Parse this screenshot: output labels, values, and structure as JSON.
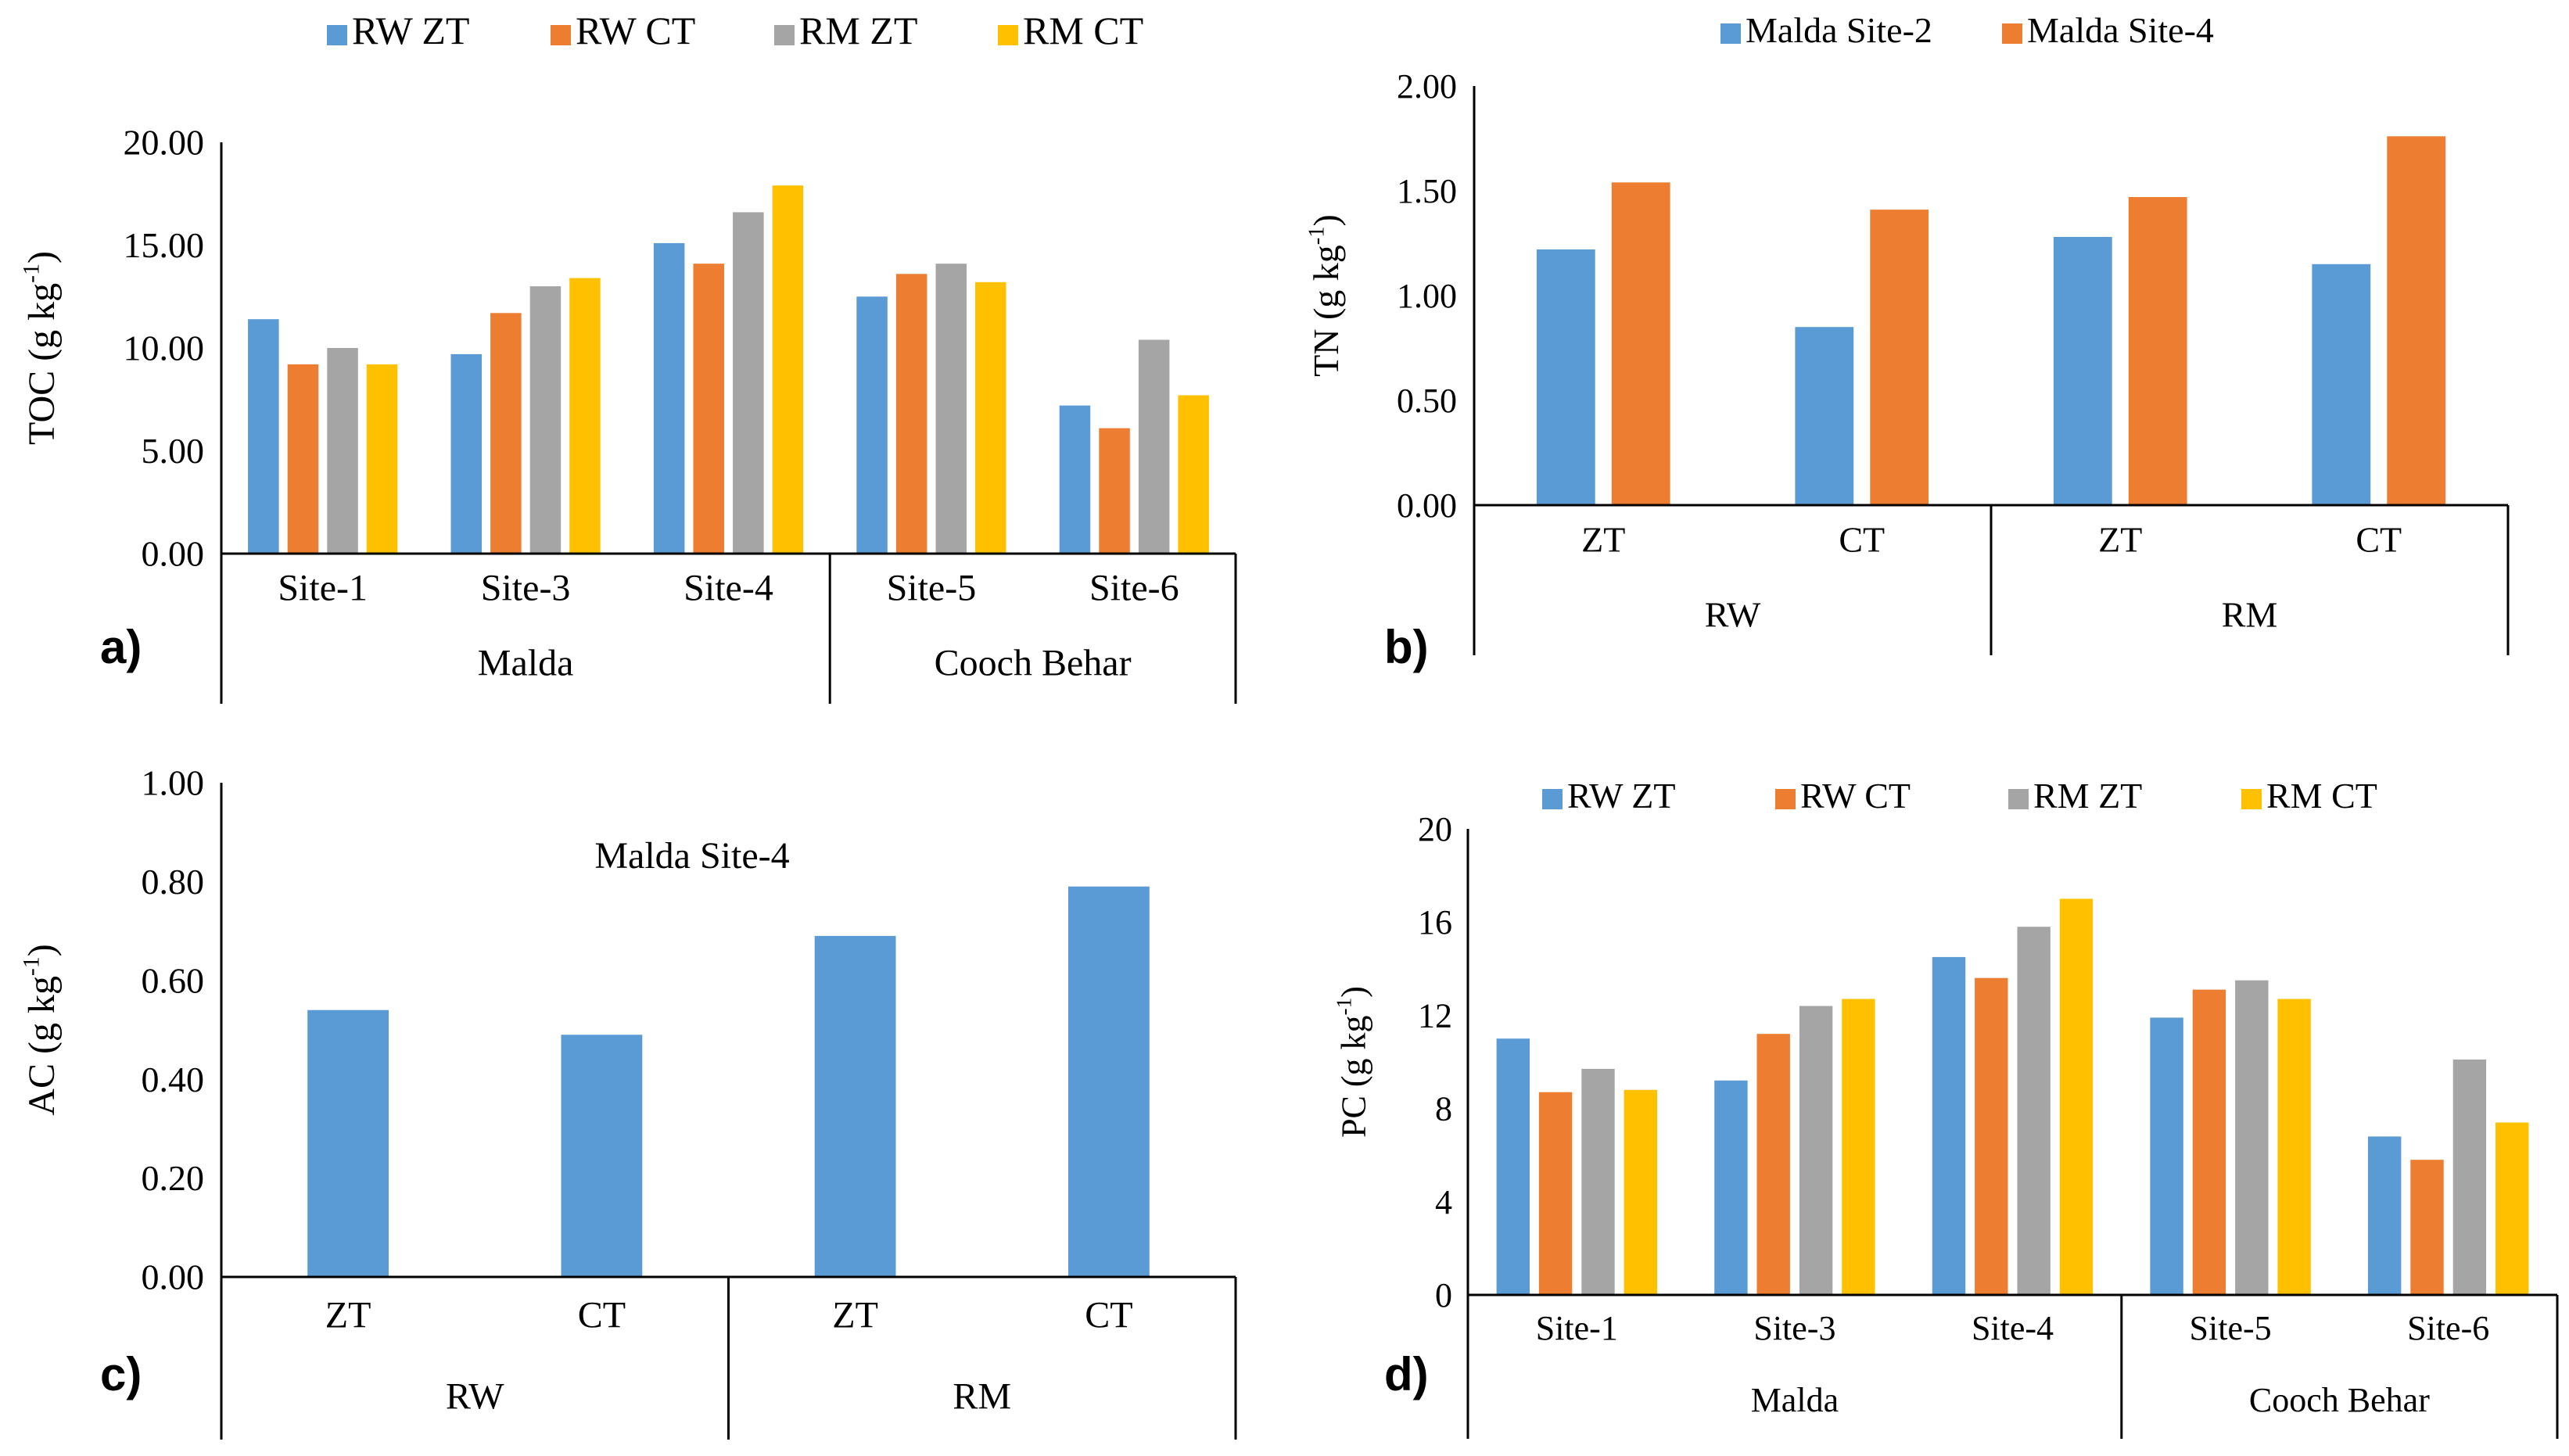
{
  "colors": {
    "rw_zt": "#5B9BD5",
    "rw_ct": "#ED7D31",
    "rm_zt": "#A5A5A5",
    "rm_ct": "#FFC000",
    "site2": "#5B9BD5",
    "site4": "#ED7D31",
    "ac": "#5B9BD5"
  },
  "chart_data": [
    {
      "id": "a",
      "type": "bar",
      "panel_label": "a)",
      "ylabel_main": "TOC (g kg",
      "ylabel_sup": "-1",
      "ylabel_end": ")",
      "ylim": [
        0,
        20
      ],
      "yticks": [
        "0.00",
        "5.00",
        "10.00",
        "15.00",
        "20.00"
      ],
      "legend_position": "top",
      "categories": [
        "Site-1",
        "Site-3",
        "Site-4",
        "Site-5",
        "Site-6"
      ],
      "groups": [
        {
          "label": "Malda",
          "count": 3
        },
        {
          "label": "Cooch Behar",
          "count": 2
        }
      ],
      "series": [
        {
          "name": "RW ZT",
          "color_key": "rw_zt",
          "values": [
            11.4,
            9.7,
            15.1,
            12.5,
            7.2
          ]
        },
        {
          "name": "RW CT",
          "color_key": "rw_ct",
          "values": [
            9.2,
            11.7,
            14.1,
            13.6,
            6.1
          ]
        },
        {
          "name": "RM ZT",
          "color_key": "rm_zt",
          "values": [
            10.0,
            13.0,
            16.6,
            14.1,
            10.4
          ]
        },
        {
          "name": "RM CT",
          "color_key": "rm_ct",
          "values": [
            9.2,
            13.4,
            17.9,
            13.2,
            7.7
          ]
        }
      ]
    },
    {
      "id": "b",
      "type": "bar",
      "panel_label": "b)",
      "ylabel_main": "TN (g kg",
      "ylabel_sup": "-1",
      "ylabel_end": ")",
      "ylim": [
        0,
        2
      ],
      "yticks": [
        "0.00",
        "0.50",
        "1.00",
        "1.50",
        "2.00"
      ],
      "legend_position": "top",
      "categories": [
        "ZT",
        "CT",
        "ZT",
        "CT"
      ],
      "groups": [
        {
          "label": "RW",
          "count": 2
        },
        {
          "label": "RM",
          "count": 2
        }
      ],
      "series": [
        {
          "name": "Malda Site-2",
          "color_key": "site2",
          "values": [
            1.22,
            0.85,
            1.28,
            1.15
          ]
        },
        {
          "name": "Malda Site-4",
          "color_key": "site4",
          "values": [
            1.54,
            1.41,
            1.47,
            1.76
          ]
        }
      ]
    },
    {
      "id": "c",
      "type": "bar",
      "panel_label": "c)",
      "ylabel_main": "AC (g kg",
      "ylabel_sup": "-1",
      "ylabel_end": ")",
      "ylim": [
        0,
        1
      ],
      "yticks": [
        "0.00",
        "0.20",
        "0.40",
        "0.60",
        "0.80",
        "1.00"
      ],
      "annotation": "Malda Site-4",
      "categories": [
        "ZT",
        "CT",
        "ZT",
        "CT"
      ],
      "groups": [
        {
          "label": "RW",
          "count": 2
        },
        {
          "label": "RM",
          "count": 2
        }
      ],
      "series": [
        {
          "name": "Malda Site-4",
          "color_key": "ac",
          "values": [
            0.54,
            0.49,
            0.69,
            0.79
          ]
        }
      ]
    },
    {
      "id": "d",
      "type": "bar",
      "panel_label": "d)",
      "ylabel_main": "PC (g kg",
      "ylabel_sup": "-1",
      "ylabel_end": ")",
      "ylim": [
        0,
        20
      ],
      "yticks": [
        "0",
        "4",
        "8",
        "12",
        "16",
        "20"
      ],
      "legend_position": "top",
      "categories": [
        "Site-1",
        "Site-3",
        "Site-4",
        "Site-5",
        "Site-6"
      ],
      "groups": [
        {
          "label": "Malda",
          "count": 3
        },
        {
          "label": "Cooch Behar",
          "count": 2
        }
      ],
      "series": [
        {
          "name": "RW ZT",
          "color_key": "rw_zt",
          "values": [
            11.0,
            9.2,
            14.5,
            11.9,
            6.8
          ]
        },
        {
          "name": "RW CT",
          "color_key": "rw_ct",
          "values": [
            8.7,
            11.2,
            13.6,
            13.1,
            5.8
          ]
        },
        {
          "name": "RM ZT",
          "color_key": "rm_zt",
          "values": [
            9.7,
            12.4,
            15.8,
            13.5,
            10.1
          ]
        },
        {
          "name": "RM CT",
          "color_key": "rm_ct",
          "values": [
            8.8,
            12.7,
            17.0,
            12.7,
            7.4
          ]
        }
      ]
    }
  ]
}
